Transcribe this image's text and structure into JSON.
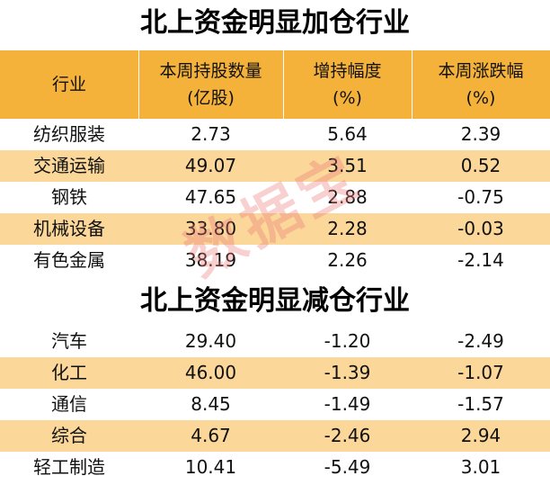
{
  "title_increase": "北上资金明显加仓行业",
  "title_decrease": "北上资金明显减仓行业",
  "header": {
    "industry": "行业",
    "holdings_line1": "本周持股数量",
    "holdings_line2": "(亿股)",
    "change_line1": "增持幅度",
    "change_line2": "(%)",
    "weekly_line1": "本周涨跌幅",
    "weekly_line2": "(%)"
  },
  "increase_rows": [
    {
      "industry": "纺织服装",
      "holdings": "2.73",
      "change": "5.64",
      "weekly": "2.39"
    },
    {
      "industry": "交通运输",
      "holdings": "49.07",
      "change": "3.51",
      "weekly": "0.52"
    },
    {
      "industry": "钢铁",
      "holdings": "47.65",
      "change": "2.88",
      "weekly": "-0.75"
    },
    {
      "industry": "机械设备",
      "holdings": "33.80",
      "change": "2.28",
      "weekly": "-0.03"
    },
    {
      "industry": "有色金属",
      "holdings": "38.19",
      "change": "2.26",
      "weekly": "-2.14"
    }
  ],
  "decrease_rows": [
    {
      "industry": "汽车",
      "holdings": "29.40",
      "change": "-1.20",
      "weekly": "-2.49"
    },
    {
      "industry": "化工",
      "holdings": "46.00",
      "change": "-1.39",
      "weekly": "-1.07"
    },
    {
      "industry": "通信",
      "holdings": "8.45",
      "change": "-1.49",
      "weekly": "-1.57"
    },
    {
      "industry": "综合",
      "holdings": "4.67",
      "change": "-2.46",
      "weekly": "2.94"
    },
    {
      "industry": "轻工制造",
      "holdings": "10.41",
      "change": "-5.49",
      "weekly": "3.01"
    }
  ],
  "watermark": "数据宝",
  "colors": {
    "header_orange": "#f5b23a",
    "row_shade": "#fbd89a"
  }
}
